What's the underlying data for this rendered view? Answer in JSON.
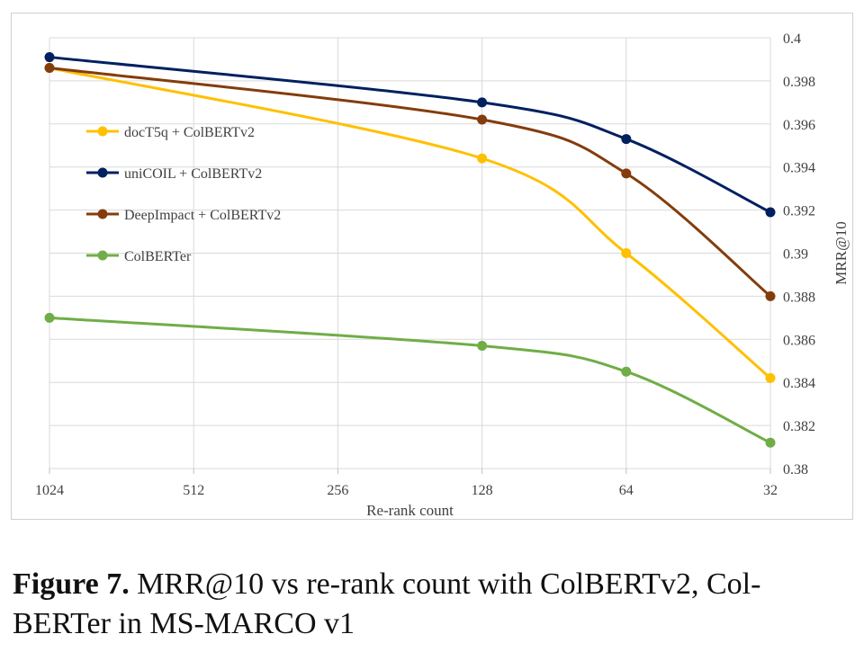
{
  "chart_data": {
    "type": "line",
    "title": "",
    "xlabel": "Re-rank count",
    "ylabel": "MRR@10",
    "categories": [
      "1024",
      "512",
      "256",
      "128",
      "64",
      "32"
    ],
    "ylim": [
      0.38,
      0.4
    ],
    "yticks": [
      "0.38",
      "0.382",
      "0.384",
      "0.386",
      "0.388",
      "0.39",
      "0.392",
      "0.394",
      "0.396",
      "0.398",
      "0.4"
    ],
    "legend_position": "left",
    "series": [
      {
        "name": "docT5q + ColBERTv2",
        "color": "#FFC000",
        "points": [
          {
            "x": "1024",
            "y": 0.3986
          },
          {
            "x": "128",
            "y": 0.3944
          },
          {
            "x": "64",
            "y": 0.39
          },
          {
            "x": "32",
            "y": 0.3842
          }
        ]
      },
      {
        "name": "uniCOIL + ColBERTv2",
        "color": "#002060",
        "points": [
          {
            "x": "1024",
            "y": 0.3991
          },
          {
            "x": "128",
            "y": 0.397
          },
          {
            "x": "64",
            "y": 0.3953
          },
          {
            "x": "32",
            "y": 0.3919
          }
        ]
      },
      {
        "name": "DeepImpact + ColBERTv2",
        "color": "#843C0C",
        "points": [
          {
            "x": "1024",
            "y": 0.3986
          },
          {
            "x": "128",
            "y": 0.3962
          },
          {
            "x": "64",
            "y": 0.3937
          },
          {
            "x": "32",
            "y": 0.388
          }
        ]
      },
      {
        "name": "ColBERTer",
        "color": "#70AD47",
        "points": [
          {
            "x": "1024",
            "y": 0.387
          },
          {
            "x": "128",
            "y": 0.3857
          },
          {
            "x": "64",
            "y": 0.3845
          },
          {
            "x": "32",
            "y": 0.3812
          }
        ]
      }
    ]
  },
  "caption": {
    "label": "Figure 7.",
    "line1": " MRR@10 vs re-rank count with ColBERTv2, Col-",
    "line2": "BERTer in MS-MARCO v1"
  }
}
